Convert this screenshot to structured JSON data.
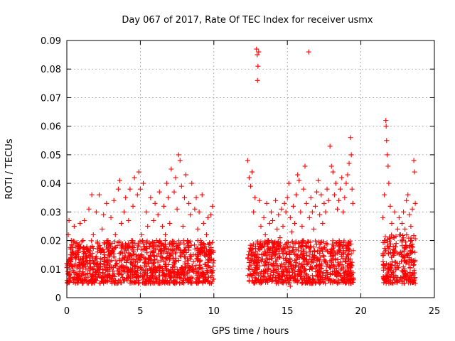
{
  "chart_data": {
    "type": "scatter",
    "title": "Day 067 of 2017, Rate Of TEC Index for receiver usmx",
    "xlabel": "GPS time / hours",
    "ylabel": "ROTI / TECUs",
    "xlim": [
      0,
      25
    ],
    "ylim": [
      0,
      0.09
    ],
    "xticks": [
      0,
      5,
      10,
      15,
      20,
      25
    ],
    "xtick_labels": [
      "0",
      "5",
      "10",
      "15",
      "20",
      "25"
    ],
    "yticks": [
      0,
      0.01,
      0.02,
      0.03,
      0.04,
      0.05,
      0.06,
      0.07,
      0.08,
      0.09
    ],
    "ytick_labels": [
      "0",
      "0.01",
      "0.02",
      "0.03",
      "0.04",
      "0.05",
      "0.06",
      "0.07",
      "0.08",
      "0.09"
    ],
    "grid": true,
    "marker": "+",
    "color": "#ff0000",
    "series": [
      {
        "points": [
          [
            0.0,
            0.012
          ],
          [
            0.1,
            0.022
          ],
          [
            0.15,
            0.027
          ],
          [
            0.2,
            0.009
          ],
          [
            0.25,
            0.015
          ],
          [
            0.3,
            0.02
          ],
          [
            0.4,
            0.011
          ],
          [
            0.5,
            0.025
          ],
          [
            0.6,
            0.014
          ],
          [
            0.7,
            0.008
          ],
          [
            0.8,
            0.018
          ],
          [
            0.9,
            0.026
          ],
          [
            1.0,
            0.012
          ],
          [
            1.1,
            0.02
          ],
          [
            1.2,
            0.027
          ],
          [
            1.3,
            0.01
          ],
          [
            1.4,
            0.016
          ],
          [
            1.5,
            0.031
          ],
          [
            1.6,
            0.013
          ],
          [
            1.7,
            0.036
          ],
          [
            1.8,
            0.022
          ],
          [
            1.9,
            0.009
          ],
          [
            2.0,
            0.03
          ],
          [
            2.1,
            0.017
          ],
          [
            2.2,
            0.036
          ],
          [
            2.3,
            0.012
          ],
          [
            2.4,
            0.024
          ],
          [
            2.5,
            0.029
          ],
          [
            2.6,
            0.014
          ],
          [
            2.7,
            0.033
          ],
          [
            2.8,
            0.02
          ],
          [
            2.9,
            0.01
          ],
          [
            3.0,
            0.028
          ],
          [
            3.1,
            0.016
          ],
          [
            3.2,
            0.034
          ],
          [
            3.3,
            0.022
          ],
          [
            3.4,
            0.012
          ],
          [
            3.5,
            0.038
          ],
          [
            3.6,
            0.041
          ],
          [
            3.7,
            0.026
          ],
          [
            3.8,
            0.018
          ],
          [
            3.9,
            0.03
          ],
          [
            4.0,
            0.035
          ],
          [
            4.1,
            0.013
          ],
          [
            4.2,
            0.027
          ],
          [
            4.3,
            0.038
          ],
          [
            4.4,
            0.02
          ],
          [
            4.5,
            0.032
          ],
          [
            4.6,
            0.042
          ],
          [
            4.7,
            0.015
          ],
          [
            4.8,
            0.036
          ],
          [
            4.9,
            0.044
          ],
          [
            5.0,
            0.038
          ],
          [
            5.1,
            0.022
          ],
          [
            5.2,
            0.04
          ],
          [
            5.3,
            0.017
          ],
          [
            5.4,
            0.03
          ],
          [
            5.5,
            0.025
          ],
          [
            5.6,
            0.019
          ],
          [
            5.7,
            0.035
          ],
          [
            5.8,
            0.012
          ],
          [
            5.9,
            0.027
          ],
          [
            6.0,
            0.033
          ],
          [
            6.1,
            0.02
          ],
          [
            6.2,
            0.029
          ],
          [
            6.3,
            0.037
          ],
          [
            6.4,
            0.016
          ],
          [
            6.5,
            0.025
          ],
          [
            6.6,
            0.032
          ],
          [
            6.7,
            0.022
          ],
          [
            6.8,
            0.04
          ],
          [
            6.9,
            0.035
          ],
          [
            7.0,
            0.026
          ],
          [
            7.1,
            0.045
          ],
          [
            7.2,
            0.018
          ],
          [
            7.3,
            0.037
          ],
          [
            7.4,
            0.042
          ],
          [
            7.5,
            0.031
          ],
          [
            7.6,
            0.05
          ],
          [
            7.7,
            0.048
          ],
          [
            7.8,
            0.039
          ],
          [
            7.9,
            0.025
          ],
          [
            8.0,
            0.035
          ],
          [
            8.1,
            0.043
          ],
          [
            8.2,
            0.02
          ],
          [
            8.3,
            0.033
          ],
          [
            8.4,
            0.029
          ],
          [
            8.5,
            0.04
          ],
          [
            8.6,
            0.015
          ],
          [
            8.7,
            0.031
          ],
          [
            8.8,
            0.035
          ],
          [
            8.9,
            0.024
          ],
          [
            9.0,
            0.03
          ],
          [
            9.1,
            0.02
          ],
          [
            9.2,
            0.036
          ],
          [
            9.3,
            0.026
          ],
          [
            9.4,
            0.018
          ],
          [
            9.5,
            0.022
          ],
          [
            9.6,
            0.028
          ],
          [
            9.7,
            0.016
          ],
          [
            9.8,
            0.029
          ],
          [
            9.9,
            0.032
          ],
          [
            10.0,
            0.013
          ],
          [
            0.2,
            0.006
          ],
          [
            0.5,
            0.007
          ],
          [
            0.9,
            0.006
          ],
          [
            1.3,
            0.008
          ],
          [
            1.7,
            0.006
          ],
          [
            2.1,
            0.007
          ],
          [
            2.5,
            0.005
          ],
          [
            2.9,
            0.007
          ],
          [
            3.3,
            0.006
          ],
          [
            3.7,
            0.008
          ],
          [
            4.1,
            0.006
          ],
          [
            4.5,
            0.007
          ],
          [
            4.9,
            0.006
          ],
          [
            5.3,
            0.008
          ],
          [
            5.7,
            0.005
          ],
          [
            6.1,
            0.007
          ],
          [
            6.5,
            0.006
          ],
          [
            6.9,
            0.008
          ],
          [
            7.3,
            0.005
          ],
          [
            7.7,
            0.007
          ],
          [
            8.1,
            0.006
          ],
          [
            8.5,
            0.005
          ],
          [
            8.9,
            0.007
          ],
          [
            9.3,
            0.006
          ],
          [
            9.7,
            0.005
          ],
          [
            12.3,
            0.048
          ],
          [
            12.4,
            0.042
          ],
          [
            12.5,
            0.039
          ],
          [
            12.6,
            0.044
          ],
          [
            12.7,
            0.03
          ],
          [
            12.8,
            0.035
          ],
          [
            12.9,
            0.087
          ],
          [
            12.95,
            0.085
          ],
          [
            13.0,
            0.081
          ],
          [
            12.97,
            0.076
          ],
          [
            13.05,
            0.086
          ],
          [
            13.1,
            0.034
          ],
          [
            13.2,
            0.025
          ],
          [
            13.3,
            0.018
          ],
          [
            13.4,
            0.028
          ],
          [
            13.5,
            0.022
          ],
          [
            13.6,
            0.033
          ],
          [
            13.7,
            0.02
          ],
          [
            13.8,
            0.026
          ],
          [
            13.9,
            0.03
          ],
          [
            14.0,
            0.027
          ],
          [
            14.1,
            0.019
          ],
          [
            14.2,
            0.034
          ],
          [
            14.3,
            0.024
          ],
          [
            14.4,
            0.029
          ],
          [
            14.5,
            0.021
          ],
          [
            14.6,
            0.031
          ],
          [
            14.7,
            0.025
          ],
          [
            14.8,
            0.033
          ],
          [
            14.9,
            0.03
          ],
          [
            15.0,
            0.035
          ],
          [
            15.1,
            0.04
          ],
          [
            15.2,
            0.028
          ],
          [
            15.3,
            0.023
          ],
          [
            15.4,
            0.032
          ],
          [
            15.5,
            0.026
          ],
          [
            15.6,
            0.036
          ],
          [
            15.7,
            0.043
          ],
          [
            15.8,
            0.041
          ],
          [
            15.9,
            0.03
          ],
          [
            16.0,
            0.025
          ],
          [
            16.1,
            0.038
          ],
          [
            16.2,
            0.046
          ],
          [
            16.3,
            0.033
          ],
          [
            16.45,
            0.086
          ],
          [
            16.5,
            0.028
          ],
          [
            16.6,
            0.035
          ],
          [
            16.7,
            0.03
          ],
          [
            16.8,
            0.024
          ],
          [
            16.9,
            0.032
          ],
          [
            17.0,
            0.037
          ],
          [
            17.1,
            0.041
          ],
          [
            17.2,
            0.029
          ],
          [
            17.3,
            0.036
          ],
          [
            17.4,
            0.026
          ],
          [
            17.5,
            0.033
          ],
          [
            17.6,
            0.03
          ],
          [
            17.7,
            0.038
          ],
          [
            17.8,
            0.034
          ],
          [
            17.9,
            0.053
          ],
          [
            18.0,
            0.046
          ],
          [
            18.1,
            0.044
          ],
          [
            18.2,
            0.036
          ],
          [
            18.3,
            0.04
          ],
          [
            18.4,
            0.031
          ],
          [
            18.5,
            0.034
          ],
          [
            18.6,
            0.038
          ],
          [
            18.7,
            0.042
          ],
          [
            18.8,
            0.03
          ],
          [
            18.9,
            0.035
          ],
          [
            19.0,
            0.04
          ],
          [
            19.1,
            0.043
          ],
          [
            19.2,
            0.047
          ],
          [
            19.3,
            0.056
          ],
          [
            19.35,
            0.05
          ],
          [
            19.4,
            0.038
          ],
          [
            19.45,
            0.033
          ],
          [
            12.4,
            0.006
          ],
          [
            12.8,
            0.007
          ],
          [
            13.2,
            0.005
          ],
          [
            13.6,
            0.006
          ],
          [
            14.0,
            0.007
          ],
          [
            14.4,
            0.005
          ],
          [
            14.8,
            0.006
          ],
          [
            15.2,
            0.004
          ],
          [
            15.6,
            0.006
          ],
          [
            16.0,
            0.005
          ],
          [
            16.4,
            0.007
          ],
          [
            16.8,
            0.006
          ],
          [
            17.2,
            0.005
          ],
          [
            17.6,
            0.007
          ],
          [
            18.0,
            0.006
          ],
          [
            18.4,
            0.005
          ],
          [
            18.8,
            0.007
          ],
          [
            19.2,
            0.006
          ],
          [
            21.5,
            0.028
          ],
          [
            21.6,
            0.036
          ],
          [
            21.7,
            0.062
          ],
          [
            21.72,
            0.06
          ],
          [
            21.75,
            0.055
          ],
          [
            21.8,
            0.05
          ],
          [
            21.85,
            0.046
          ],
          [
            21.9,
            0.04
          ],
          [
            22.0,
            0.032
          ],
          [
            22.1,
            0.026
          ],
          [
            22.2,
            0.021
          ],
          [
            22.3,
            0.03
          ],
          [
            22.4,
            0.019
          ],
          [
            22.5,
            0.024
          ],
          [
            22.6,
            0.028
          ],
          [
            22.7,
            0.022
          ],
          [
            22.8,
            0.026
          ],
          [
            22.9,
            0.03
          ],
          [
            23.0,
            0.024
          ],
          [
            23.1,
            0.034
          ],
          [
            23.2,
            0.036
          ],
          [
            23.3,
            0.029
          ],
          [
            23.4,
            0.025
          ],
          [
            23.5,
            0.031
          ],
          [
            23.6,
            0.048
          ],
          [
            23.65,
            0.044
          ],
          [
            23.7,
            0.033
          ],
          [
            21.6,
            0.006
          ],
          [
            21.9,
            0.005
          ],
          [
            22.2,
            0.007
          ],
          [
            22.5,
            0.006
          ],
          [
            22.8,
            0.005
          ],
          [
            23.1,
            0.006
          ],
          [
            23.4,
            0.007
          ],
          [
            23.7,
            0.005
          ]
        ]
      }
    ],
    "dense_bands": [
      {
        "x_range": [
          0.0,
          10.0
        ],
        "y_range": [
          0.005,
          0.02
        ]
      },
      {
        "x_range": [
          12.3,
          19.5
        ],
        "y_range": [
          0.005,
          0.02
        ]
      },
      {
        "x_range": [
          21.5,
          23.7
        ],
        "y_range": [
          0.005,
          0.022
        ]
      }
    ]
  }
}
